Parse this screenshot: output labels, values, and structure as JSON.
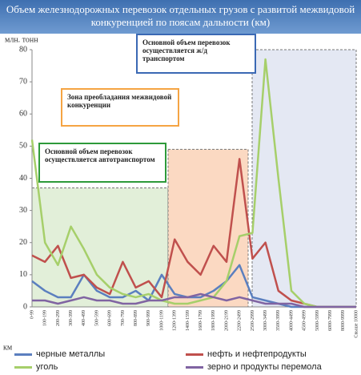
{
  "chart_data": {
    "type": "line",
    "title": "Объем железнодорожных перевозок отдельных грузов с развитой межвидовой конкуренцией по поясам дальности (км)",
    "y_label": "млн. тонн",
    "x_label": "км",
    "categories": [
      "0-99",
      "100-199",
      "200-299",
      "300-399",
      "400-499",
      "500-599",
      "600-699",
      "700-799",
      "800-899",
      "900-999",
      "1000-1199",
      "1200-1399",
      "1400-1599",
      "1600-1799",
      "1800-1999",
      "2000-2199",
      "2200-2499",
      "2500-2999",
      "3000-3499",
      "3500-3999",
      "4000-4499",
      "4500-4999",
      "5000-5999",
      "6000-7999",
      "8000-9999",
      "Свыше 10000"
    ],
    "series": [
      {
        "name": "черные металлы",
        "color": "#5b7fbf",
        "values": [
          8,
          5,
          3,
          3,
          10,
          5,
          3,
          3,
          5,
          2,
          10,
          4,
          3,
          3,
          5,
          8,
          13,
          3,
          2,
          1,
          0,
          0,
          0,
          0,
          0,
          0
        ]
      },
      {
        "name": "нефть и нефтепродукты",
        "color": "#c0504d",
        "values": [
          16,
          14,
          19,
          9,
          10,
          6,
          4,
          14,
          6,
          8,
          3,
          21,
          14,
          10,
          19,
          14,
          46,
          15,
          20,
          5,
          2,
          1,
          0,
          0,
          0,
          0
        ]
      },
      {
        "name": "уголь",
        "color": "#a6cf6a",
        "values": [
          52,
          20,
          13,
          25,
          18,
          10,
          6,
          4,
          3,
          4,
          2,
          1,
          1,
          2,
          3,
          8,
          22,
          23,
          77,
          40,
          5,
          1,
          0,
          0,
          0,
          0
        ]
      },
      {
        "name": "зерно и продукты перемола",
        "color": "#8064a2",
        "values": [
          2,
          2,
          1,
          2,
          3,
          2,
          2,
          1,
          1,
          2,
          2,
          3,
          3,
          4,
          3,
          2,
          3,
          2,
          1,
          1,
          1,
          0,
          0,
          0,
          0,
          0
        ]
      }
    ],
    "ylim": [
      0,
      80
    ],
    "yticks": [
      0,
      10,
      20,
      30,
      40,
      50,
      60,
      70,
      80
    ],
    "zones": [
      {
        "text": "Основной объем перевозок осуществляется автотранспортом",
        "color": "#e2efd9",
        "border": "#2e9a3a",
        "top": 37
      },
      {
        "text": "Зона преобладания межвидовой конкуренции",
        "color": "#fbd9c2",
        "border": "#f5a443",
        "top": 49
      },
      {
        "text": "Основной объем перевозок осуществляется ж/д транспортом",
        "color": "#e4e8f3",
        "border": "#3b69b4",
        "top": 80
      }
    ]
  }
}
